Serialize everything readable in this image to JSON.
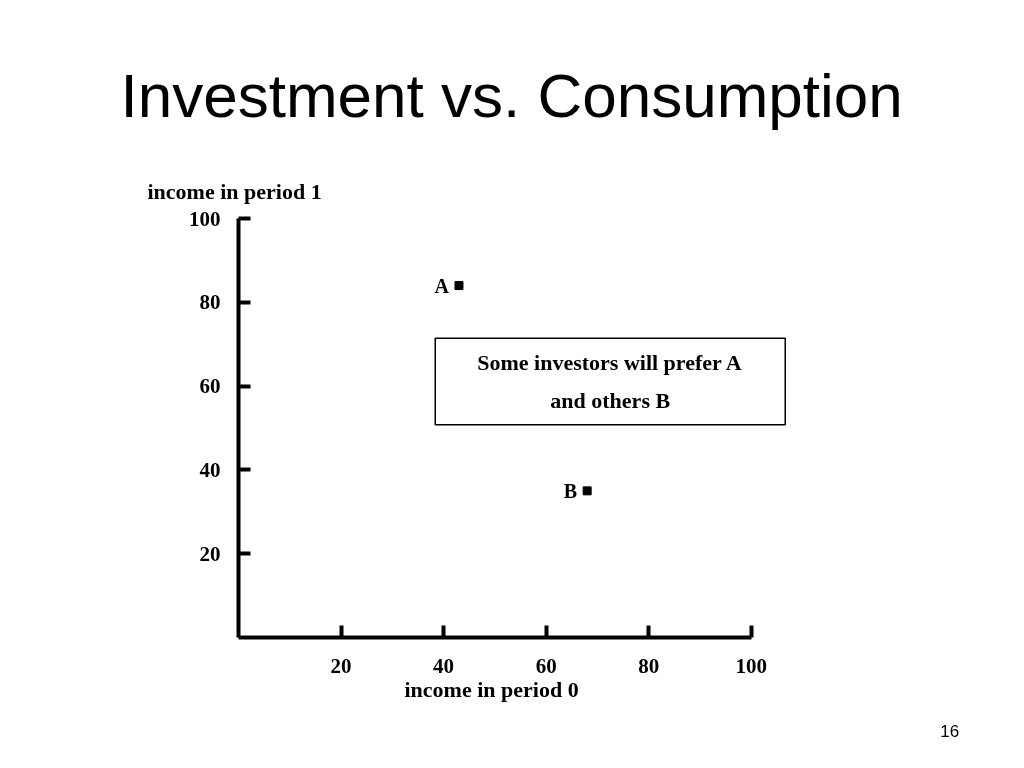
{
  "chart_data": {
    "type": "scatter",
    "title": "Investment vs. Consumption",
    "xlabel": "income in period 0",
    "ylabel": "income in period 1",
    "xlim": [
      0,
      100
    ],
    "ylim": [
      0,
      100
    ],
    "xticks": [
      20,
      40,
      60,
      80,
      100
    ],
    "yticks": [
      20,
      40,
      60,
      80,
      100
    ],
    "grid": false,
    "marker": "square",
    "series": [
      {
        "name": "A",
        "color": "#000000",
        "x": [
          43
        ],
        "values": [
          84
        ]
      },
      {
        "name": "B",
        "color": "#000000",
        "x": [
          68
        ],
        "values": [
          35
        ]
      }
    ],
    "annotations": [
      "Some investors will prefer A\nand others B",
      "16"
    ]
  }
}
